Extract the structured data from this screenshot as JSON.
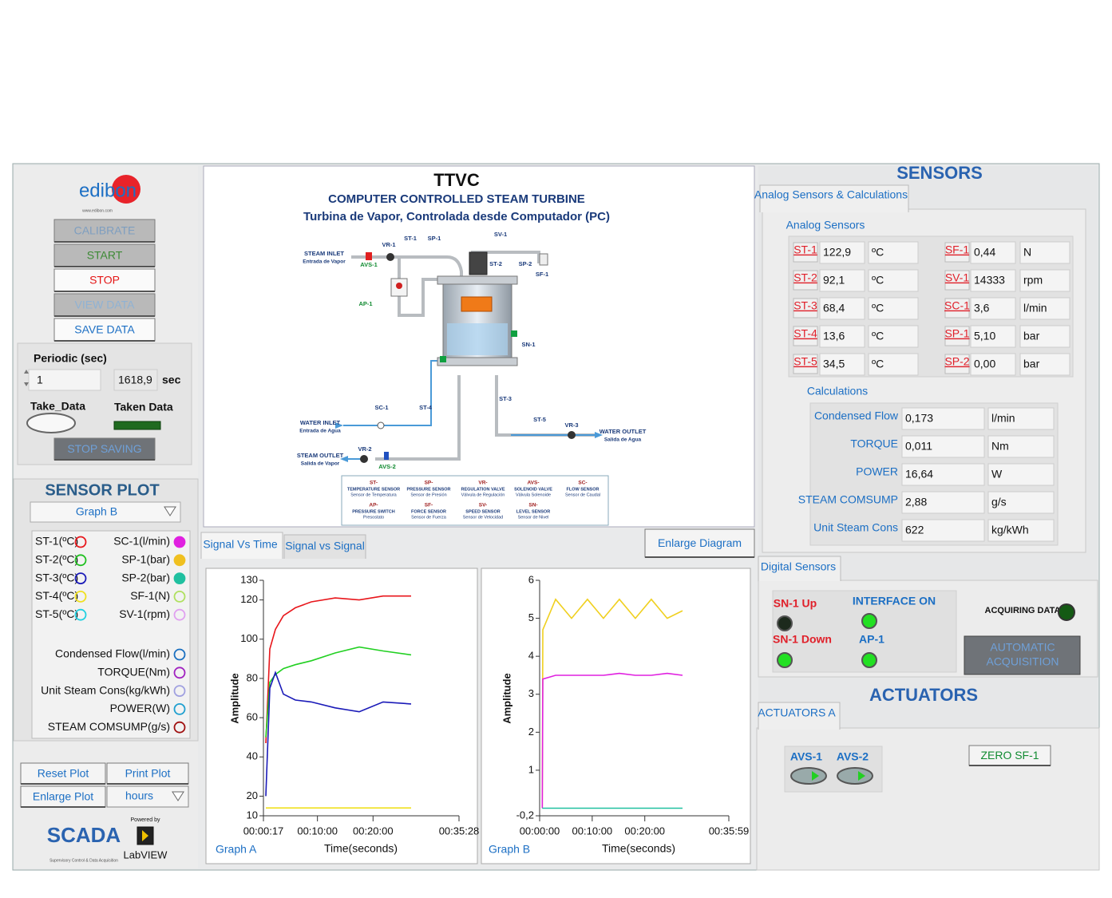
{
  "logo": {
    "brand": "edibon",
    "url": "www.edibon.com"
  },
  "controls": {
    "buttons": [
      "CALIBRATE",
      "START",
      "STOP",
      "VIEW DATA",
      "SAVE DATA"
    ],
    "periodic_label": "Periodic (sec)",
    "periodic_value": "1",
    "taken_value": "1618,9",
    "unit": "sec",
    "take_data": "Take_Data",
    "taken_data": "Taken Data",
    "stop_saving": "STOP SAVING"
  },
  "sensor_plot": {
    "title": "SENSOR PLOT",
    "selected": "Graph B",
    "sensors_left": [
      "ST-1(ºC)",
      "ST-2(ºC)",
      "ST-3(ºC)",
      "ST-4(ºC)",
      "ST-5(ºC)"
    ],
    "sensors_right": [
      "SC-1(l/min)",
      "SP-1(bar)",
      "SP-2(bar)",
      "SF-1(N)",
      "SV-1(rpm)"
    ],
    "calculations": [
      "Condensed Flow(l/min)",
      "TORQUE(Nm)",
      "Unit Steam Cons(kg/kWh)",
      "POWER(W)",
      "STEAM COMSUMP(g/s)"
    ]
  },
  "plot_buttons": {
    "reset": "Reset Plot",
    "print": "Print Plot",
    "enlarge": "Enlarge Plot",
    "units": "hours"
  },
  "footer": {
    "scada": "SCADA",
    "scada_sub": "Supervisory Control & Data Acquisition",
    "powered": "Powered by",
    "labview": "LabVIEW"
  },
  "diagram": {
    "title": "TTVC",
    "subtitle": "COMPUTER CONTROLLED STEAM TURBINE",
    "subtitle_es": "Turbina de Vapor, Controlada desde Computador (PC)",
    "labels": [
      "STEAM INLET",
      "Entrada de Vapor",
      "AVS-1",
      "VR-1",
      "ST-1",
      "SP-1",
      "SV-1",
      "ST-2",
      "SP-2",
      "SF-1",
      "AP-1",
      "SN-1",
      "ST-3",
      "SC-1",
      "ST-4",
      "ST-5",
      "VR-3",
      "WATER INLET",
      "Entrada de Agua",
      "WATER OUTLET",
      "Salida de Agua",
      "STEAM OUTLET",
      "Salida de Vapor",
      "VR-2",
      "AVS-2"
    ],
    "legend": [
      {
        "code": "ST-",
        "name": "TEMPERATURE SENSOR",
        "name_es": "Sensor de Temperatura"
      },
      {
        "code": "SP-",
        "name": "PRESSURE SENSOR",
        "name_es": "Sensor de Presión"
      },
      {
        "code": "VR-",
        "name": "REGULATION VALVE",
        "name_es": "Válvula de Regulación"
      },
      {
        "code": "AVS-",
        "name": "SOLENOID VALVE",
        "name_es": "Válvula Solenoide"
      },
      {
        "code": "SC-",
        "name": "FLOW SENSOR",
        "name_es": "Sensor de Caudal"
      },
      {
        "code": "AP-",
        "name": "PRESSURE SWITCH",
        "name_es": "Presostato"
      },
      {
        "code": "SF-",
        "name": "FORCE SENSOR",
        "name_es": "Sensor de Fuerza"
      },
      {
        "code": "SV-",
        "name": "SPEED SENSOR",
        "name_es": "Sensor de Velocidad"
      },
      {
        "code": "SN-",
        "name": "LEVEL SENSOR",
        "name_es": "Sensor de Nivel"
      }
    ]
  },
  "tabs": {
    "signal_vs_time": "Signal Vs Time",
    "signal_vs_signal": "Signal vs Signal",
    "enlarge_diagram": "Enlarge Diagram"
  },
  "chart_data": [
    {
      "type": "line",
      "title": "Graph A",
      "x_label": "Time(seconds)",
      "y_label": "Amplitude",
      "x": [
        43,
        86,
        146,
        232,
        362,
        534,
        792,
        1051,
        1309,
        1611
      ],
      "series": [
        {
          "color": "#e8161b",
          "values": [
            47,
            95,
            105,
            112,
            116,
            119,
            121,
            120,
            122,
            122
          ]
        },
        {
          "color": "#22d022",
          "values": [
            50,
            78,
            82,
            85,
            87,
            89,
            93,
            96,
            94,
            92
          ]
        },
        {
          "color": "#1a1ab8",
          "values": [
            20,
            75,
            83,
            72,
            69,
            68,
            65,
            63,
            68,
            67
          ]
        },
        {
          "color": "#f0e020",
          "values": [
            14,
            14,
            14,
            14,
            14,
            14,
            14,
            14,
            14,
            14
          ]
        }
      ],
      "xlim": [
        17,
        2128
      ],
      "xticks": [
        {
          "value": 17,
          "label": "00:00:17"
        },
        {
          "value": 600,
          "label": "00:10:00"
        },
        {
          "value": 1200,
          "label": "00:20:00"
        },
        {
          "value": 2128,
          "label": "00:35:28"
        }
      ],
      "ylim": [
        10,
        130
      ],
      "yticks": [
        10,
        20,
        40,
        60,
        80,
        100,
        120,
        130
      ]
    },
    {
      "type": "line",
      "title": "Graph B",
      "x_label": "Time(seconds)",
      "y_label": "Amplitude",
      "x": [
        30,
        36,
        182,
        364,
        546,
        728,
        910,
        1092,
        1274,
        1456,
        1631
      ],
      "series": [
        {
          "color": "#f0d020",
          "values": [
            0,
            4.7,
            5.5,
            5.0,
            5.5,
            5.0,
            5.5,
            5.0,
            5.5,
            5.0,
            5.2
          ]
        },
        {
          "color": "#e020e0",
          "values": [
            0,
            3.4,
            3.5,
            3.5,
            3.5,
            3.5,
            3.55,
            3.5,
            3.5,
            3.55,
            3.5
          ]
        },
        {
          "color": "#20c0a0",
          "values": [
            0,
            0,
            0,
            0,
            0,
            0,
            0,
            0,
            0,
            0,
            0
          ]
        }
      ],
      "xlim": [
        0,
        2159
      ],
      "xticks": [
        {
          "value": 0,
          "label": "00:00:00"
        },
        {
          "value": 600,
          "label": "00:10:00"
        },
        {
          "value": 1200,
          "label": "00:20:00"
        },
        {
          "value": 2159,
          "label": "00:35:59"
        }
      ],
      "ylim": [
        -0.2,
        6
      ],
      "yticks": [
        {
          "value": -0.2,
          "label": "-0,2"
        },
        1,
        2,
        3,
        4,
        5,
        6
      ]
    }
  ],
  "sensors": {
    "title": "SENSORS",
    "tab": "Analog Sensors & Calculations",
    "analog_title": "Analog Sensors",
    "analog": [
      {
        "name": "ST-1",
        "value": "122,9",
        "unit": "ºC"
      },
      {
        "name": "ST-2",
        "value": "92,1",
        "unit": "ºC"
      },
      {
        "name": "ST-3",
        "value": "68,4",
        "unit": "ºC"
      },
      {
        "name": "ST-4",
        "value": "13,6",
        "unit": "ºC"
      },
      {
        "name": "ST-5",
        "value": "34,5",
        "unit": "ºC"
      },
      {
        "name": "SF-1",
        "value": "0,44",
        "unit": "N"
      },
      {
        "name": "SV-1",
        "value": "14333",
        "unit": "rpm"
      },
      {
        "name": "SC-1",
        "value": "3,6",
        "unit": "l/min"
      },
      {
        "name": "SP-1",
        "value": "5,10",
        "unit": "bar"
      },
      {
        "name": "SP-2",
        "value": "0,00",
        "unit": "bar"
      }
    ],
    "calc_title": "Calculations",
    "calculations": [
      {
        "name": "Condensed Flow",
        "value": "0,173",
        "unit": "l/min"
      },
      {
        "name": "TORQUE",
        "value": "0,011",
        "unit": "Nm"
      },
      {
        "name": "POWER",
        "value": "16,64",
        "unit": "W"
      },
      {
        "name": "STEAM COMSUMP",
        "value": "2,88",
        "unit": "g/s"
      },
      {
        "name": "Unit Steam Cons",
        "value": "622",
        "unit": "kg/kWh"
      }
    ],
    "digital_tab": "Digital Sensors",
    "digital": [
      {
        "name": "SN-1 Up",
        "on": false
      },
      {
        "name": "SN-1 Down",
        "on": true
      },
      {
        "name": "INTERFACE ON",
        "on": true
      },
      {
        "name": "AP-1",
        "on": true
      }
    ],
    "acquiring": "ACQUIRING DATA",
    "automatic": [
      "AUTOMATIC",
      "ACQUISITION"
    ]
  },
  "actuators": {
    "title": "ACTUATORS",
    "tab": "ACTUATORS A",
    "valves": [
      "AVS-1",
      "AVS-2"
    ],
    "zero_button": "ZERO SF-1"
  }
}
